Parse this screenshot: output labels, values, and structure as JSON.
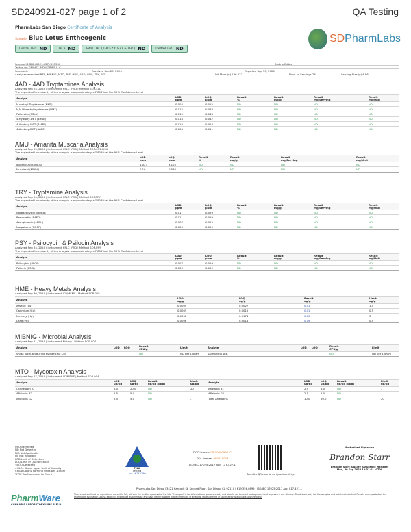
{
  "header": {
    "title": "SD240921-027 page 1 of 2",
    "right": "QA Testing",
    "lab": "PharmLabs San Diego",
    "doc_type": "Certificate of Analysis",
    "sample_tag": "Sample",
    "sample_name": "Blue Lotus Entheogenic",
    "logo_text_a": "SD",
    "logo_text_b": "PharmLabs"
  },
  "badges": [
    {
      "label": "Delta9 THC",
      "value": "ND"
    },
    {
      "label": "THCa",
      "value": "ND"
    },
    {
      "label": "Total THC (THCa * 0.877 + THC)",
      "value": "ND"
    },
    {
      "label": "Delta8 THC",
      "value": "ND"
    }
  ],
  "info": {
    "sample_id": "Sample ID  SD240921-027 (99553)",
    "matrix": "Matrix  Edible",
    "tested_for": "Tested for  GENALT INDUSTRIES LLC",
    "sampled": "Sampled  -",
    "received": "Received  Sep 20, 2024",
    "reported": "Reported  Sep 30, 2024",
    "analyses": "Analyses executed  RES, MIBNIG, MTO, PES, HME, 4AD, AMU, TRY, PSY",
    "unit_mass": "Unit Mass (g)  136.032",
    "servings": "Num. of Servings  28",
    "serving_size": "Serving Size (g)  4.86"
  },
  "sections": {
    "ad4": {
      "title": "4AD - 4AD Tryptamines Analysis",
      "meta": "Analyzed Sep 24, 2024 | Instrument HPLC VWD | Method SOP-4AD",
      "unc": "The expanded Uncertainty of the analysis is approximately ±7.806% at the 95% Confidence Level",
      "headers": [
        "Analyte",
        "LOD\nppm",
        "LOQ\nppm",
        "Result\n%",
        "Result\nmg/g",
        "Result\nmg/Serving",
        "Result\nmg/Unit"
      ],
      "rows": [
        [
          "N-methyl Tryptamine (NMT)",
          "0.004",
          "0.015",
          "ND",
          "ND",
          "ND",
          "ND"
        ],
        [
          "N,N-Dimethyltryptamine (DMT)",
          "0.015",
          "0.048",
          "ND",
          "ND",
          "ND",
          "ND"
        ],
        [
          "Psilocetin (PSLA)",
          "0.015",
          "0.044",
          "ND",
          "ND",
          "ND",
          "ND"
        ],
        [
          "4-Hydroxy-DET (4HDE)",
          "0.014",
          "0.042",
          "ND",
          "ND",
          "ND",
          "ND"
        ],
        [
          "4-Acetoxy-MET (4AME)",
          "0.018",
          "0.053",
          "ND",
          "ND",
          "ND",
          "ND"
        ],
        [
          "4-Acetoxy-DET (4ADE)",
          "0.004",
          "0.011",
          "ND",
          "ND",
          "ND",
          "ND"
        ]
      ]
    },
    "amu": {
      "title": "AMU - Amanita Muscaria Analysis",
      "meta": "Analyzed Sep 25, 2024 | Instrument HPLC VWD | Method SOP-031 AMU",
      "unc": "The expanded Uncertainty of the analysis is approximately ±7.806% at the 95% Confidence Level",
      "headers": [
        "Analyte",
        "LOD\nppm",
        "LOQ\nppm",
        "Result\n%",
        "Result\nmg/g",
        "Result\nmg/Serving",
        "Result\nmg/Unit"
      ],
      "rows": [
        [
          "Ibotenic Acid (IBOs)",
          "1.023",
          "3.105",
          "ND",
          "ND",
          "ND",
          "ND"
        ],
        [
          "Muscimol (MUOL)",
          "0.19",
          "0.576",
          "ND",
          "ND",
          "ND",
          "ND"
        ]
      ]
    },
    "try": {
      "title": "TRY - Tryptamine Analysis",
      "meta": "Analyzed Sep 24, 2024 | Instrument HPLC VWD | Method SOP-TRY",
      "unc": "The expanded Uncertainty of the analysis is approximately ±7.806% at the 95% Confidence Level",
      "headers": [
        "Analyte",
        "LOD\nppm",
        "LOQ\nppm",
        "Result\n%",
        "Result\nmg/g",
        "Result\nmg/Serving",
        "Result\nmg/Unit"
      ],
      "rows": [
        [
          "Norbaeocystin (NORB)",
          "0.01",
          "0.029",
          "ND",
          "ND",
          "ND",
          "ND"
        ],
        [
          "Baeocystin (BAEO)",
          "0.01",
          "0.029",
          "ND",
          "ND",
          "ND",
          "ND"
        ],
        [
          "Aeruginascin (AERU)",
          "0.007",
          "0.022",
          "ND",
          "ND",
          "ND",
          "ND"
        ],
        [
          "Norpsilocin (NORP)",
          "0.003",
          "0.009",
          "ND",
          "ND",
          "ND",
          "ND"
        ]
      ]
    },
    "psy": {
      "title": "PSY - Psilocybin & Psilocin Analysis",
      "meta": "Analyzed Sep 24, 2024 | Instrument HPLC VWD | Method SOP-PSY",
      "unc": "The expanded Uncertainty of the analysis is approximately ±7.806% at the 95% Confidence Level",
      "headers": [
        "Analyte",
        "LOD\nppm",
        "LOQ\nppm",
        "Result\n%",
        "Result\nmg/g",
        "Result\nmg/Serving",
        "Result\nmg/Unit"
      ],
      "rows": [
        [
          "Psilocybin (PSCY)",
          "0.007",
          "0.019",
          "ND",
          "ND",
          "ND",
          "ND"
        ],
        [
          "Psilocin (PSCI)",
          "0.003",
          "0.009",
          "ND",
          "ND",
          "ND",
          "ND"
        ]
      ]
    },
    "hme": {
      "title": "HME - Heavy Metals Analysis",
      "meta": "Analyzed Sep 30, 2024 | Instrument ICP/MSMS | Method SOP-005",
      "headers": [
        "Analyte",
        "LOD\nug/g",
        "LOQ\nug/g",
        "Result\nug/g",
        "Limit\nug/g"
      ],
      "rows": [
        [
          "Arsenic (As)",
          "0.0009",
          "0.0027",
          "0.01",
          "1.5"
        ],
        [
          "Cadmium (Cd)",
          "0.0005",
          "0.0015",
          "0.01",
          "0.5"
        ],
        [
          "Mercury (Hg)",
          "0.0058",
          "0.0174",
          "0.00",
          "3"
        ],
        [
          "Lead (Pb)",
          "0.0006",
          "0.0018",
          "0.19",
          "0.5"
        ]
      ]
    },
    "mib": {
      "title": "MIBNIG - Microbial Analysis",
      "meta": "Analyzed Sep 21, 2024 | Instrument Plating | Method SOP-007",
      "headers": [
        "Analyte",
        "LOD",
        "LOQ",
        "Result\nCFU/g",
        "Limit",
        "Analyte",
        "LOD",
        "LOQ",
        "Result\nCFU/g",
        "Limit"
      ],
      "rows": [
        [
          "Shiga toxin-producing Escherichia Coli",
          "",
          "",
          "ND",
          "ND per 1 gram",
          "Salmonella spp.",
          "",
          "",
          "ND",
          "ND per 1 gram"
        ]
      ]
    },
    "mto": {
      "title": "MTO - Mycotoxin Analysis",
      "meta": "Analyzed Sep 27, 2024 | Instrument LC/MSMS | Method SOP-004",
      "headers": [
        "Analyte",
        "LOD\nug/kg",
        "LOQ\nug/kg",
        "Result\nug/kg (ppb)",
        "Limit\nug/kg",
        "Analyte",
        "LOD\nug/kg",
        "LOQ\nug/kg",
        "Result\nug/kg (ppb)",
        "Limit\nug/kg"
      ],
      "rows": [
        [
          "Ochratoxin A",
          "5.0",
          "20.0",
          "ND",
          "20",
          "Aflatoxin B1",
          "2.5",
          "5.0",
          "ND",
          "-"
        ],
        [
          "Aflatoxin B2",
          "2.5",
          "5.0",
          "ND",
          "-",
          "Aflatoxin G1",
          "2.5",
          "5.0",
          "ND",
          "-"
        ],
        [
          "Aflatoxin G2",
          "2.5",
          "5.0",
          "ND",
          "-",
          "Total Aflatoxins",
          "10.0",
          "20.0",
          "ND",
          "20"
        ]
      ]
    }
  },
  "footer": {
    "legend": [
      "UI Unidentified",
      "ND Not Detected",
      "N/A Not Applicable",
      "NT Not Reported",
      "LOD Limit of Detection",
      "LOQ Limit of Quantification",
      "<LOQ Detected",
      ">ULOL Above upper limit of linearity",
      "CFU/g Colony Forming Units per 1 gram",
      "TNTC Too Numerous to Count"
    ],
    "pjla": "PJLA",
    "pjla_sub": "Testing",
    "pjla_acc": "Acc. #112390",
    "dcc_label": "DCC license:",
    "dcc": "C8-0000099-LIC",
    "dea_label": "DEA license:",
    "dea": "RP0615043",
    "iso": "ISO/IEC 17025:2017 Acc. L17-427-1",
    "qr_caption": "Scan the QR code to verify authenticity.",
    "sig_label": "Authorized Signature",
    "signature": "Brandon Starr",
    "signer": "Brandon Starr, Quality Assurance Manager",
    "sig_date": "Mon, 30 Sep 2024 12:31:01 -0700",
    "address": "PharmLabs San Diego | 3421 Hancock St, Second Floor, San Diego, CA 92110 | 619.356.0899 | ISO/IEC 17025:2017 Acc. L17-427-1",
    "pw_a": "Pharm",
    "pw_b": "Ware",
    "pw_sub": "CANNABIS LABORATORY LIMS & ELN",
    "disclaimer": "This report shall not be reproduced except in full, without the written approval of the lab. This report is for informational purposes only and should not be used to diagnose, treat or prevent any disease. Results are only for the samples and batches indicated. Results are reported on the PharmLabs evaluation unless explicitly expressed as otherwise and have been reported in the certificate of analysis. Measurement of uncertainty is available upon request."
  },
  "colors": {
    "badge_bg": "#bfe4d2",
    "nd_green": "#3a9a5a",
    "result_blue": "#3050a8",
    "accent_orange": "#e07040",
    "coa_blue": "#5aa0c0"
  }
}
